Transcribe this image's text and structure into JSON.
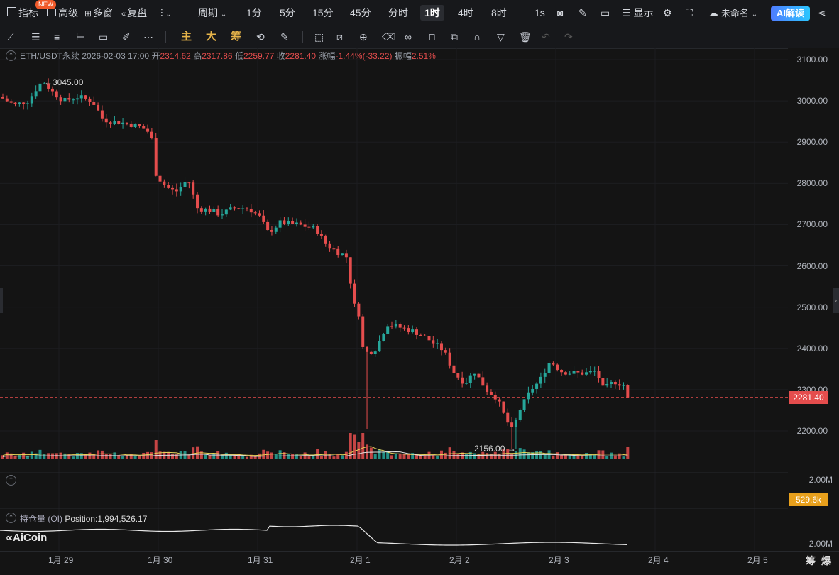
{
  "toolbar": {
    "indicator": "指标",
    "new_badge": "NEW",
    "advanced": "高级",
    "multi_window": "多窗",
    "replay": "复盘",
    "period": "周期",
    "timeframes": [
      "1分",
      "5分",
      "15分",
      "45分",
      "分时",
      "1时",
      "4时",
      "8时"
    ],
    "active_timeframe": "1时",
    "one_second": "1s",
    "display": "显示",
    "unnamed": "未命名",
    "ai_read": "AI解读"
  },
  "drawing_bar": {
    "labels": [
      "主",
      "大",
      "筹"
    ]
  },
  "symbol": {
    "name": "ETH/USDT永续",
    "time": "2026-02-03 17:00",
    "open_label": "开",
    "open": "2314.62",
    "high_label": "高",
    "high": "2317.86",
    "low_label": "低",
    "low": "2259.77",
    "close_label": "收",
    "close": "2281.40",
    "change_label": "涨幅",
    "change": "-1.44%(-33.22)",
    "amp_label": "振幅",
    "amp": "2.51%"
  },
  "chart_data": {
    "type": "candlestick",
    "y_ticks": [
      "3100.00",
      "3000.00",
      "2900.00",
      "2800.00",
      "2700.00",
      "2600.00",
      "2500.00",
      "2400.00",
      "2300.00",
      "2200.00"
    ],
    "ylim": [
      2140,
      3100
    ],
    "x_ticks": [
      "1月 29",
      "1月 30",
      "1月 31",
      "2月 1",
      "2月 2",
      "2月 3",
      "2月 4",
      "2月 5"
    ],
    "current_price": "2281.40",
    "max_marker": "3045.00",
    "min_marker": "2156.00",
    "volume_axis": "2.00M",
    "volume_current": "529.6k",
    "oi_axis": "2.00M",
    "oi_label": "持仓量 (OI)",
    "oi_value": "Position:1,994,526.17",
    "up_color": "#26a69a",
    "down_color": "#e54d4d"
  },
  "footer": {
    "chip": "筹",
    "burst": "爆",
    "logo": "AiCoin"
  }
}
